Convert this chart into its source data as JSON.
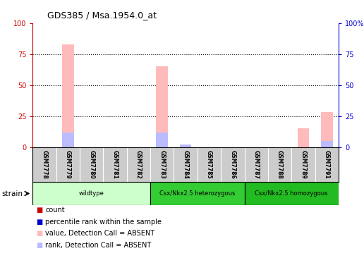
{
  "title": "GDS385 / Msa.1954.0_at",
  "samples": [
    "GSM7778",
    "GSM7779",
    "GSM7780",
    "GSM7781",
    "GSM7782",
    "GSM7783",
    "GSM7784",
    "GSM7785",
    "GSM7786",
    "GSM7787",
    "GSM7788",
    "GSM7789",
    "GSM7791"
  ],
  "pink_bars": [
    0,
    83,
    0,
    0,
    0,
    65,
    0,
    0,
    0,
    0,
    0,
    15,
    28
  ],
  "blue_bars": [
    0,
    12,
    0,
    0,
    0,
    12,
    2,
    0,
    0,
    0,
    0,
    0,
    5
  ],
  "ylim": [
    0,
    100
  ],
  "yticks": [
    0,
    25,
    50,
    75,
    100
  ],
  "yticklabels_left": [
    "0",
    "25",
    "50",
    "75",
    "100"
  ],
  "yticklabels_right": [
    "0",
    "25",
    "50",
    "75",
    "100%"
  ],
  "left_axis_color": "#cc0000",
  "right_axis_color": "#0000cc",
  "groups": [
    {
      "label": "wildtype",
      "start": 0,
      "end": 4,
      "color": "#ccffcc"
    },
    {
      "label": "Csx/Nkx2.5 heterozygous",
      "start": 5,
      "end": 8,
      "color": "#33cc33"
    },
    {
      "label": "Csx/Nkx2.5 homozygous",
      "start": 9,
      "end": 12,
      "color": "#22bb22"
    }
  ],
  "legend_items": [
    {
      "label": "count",
      "color": "#cc0000"
    },
    {
      "label": "percentile rank within the sample",
      "color": "#0000cc"
    },
    {
      "label": "value, Detection Call = ABSENT",
      "color": "#ffbbbb"
    },
    {
      "label": "rank, Detection Call = ABSENT",
      "color": "#bbbbff"
    }
  ],
  "bg_color": "#ffffff",
  "sample_bg": "#cccccc",
  "bar_width": 0.5
}
